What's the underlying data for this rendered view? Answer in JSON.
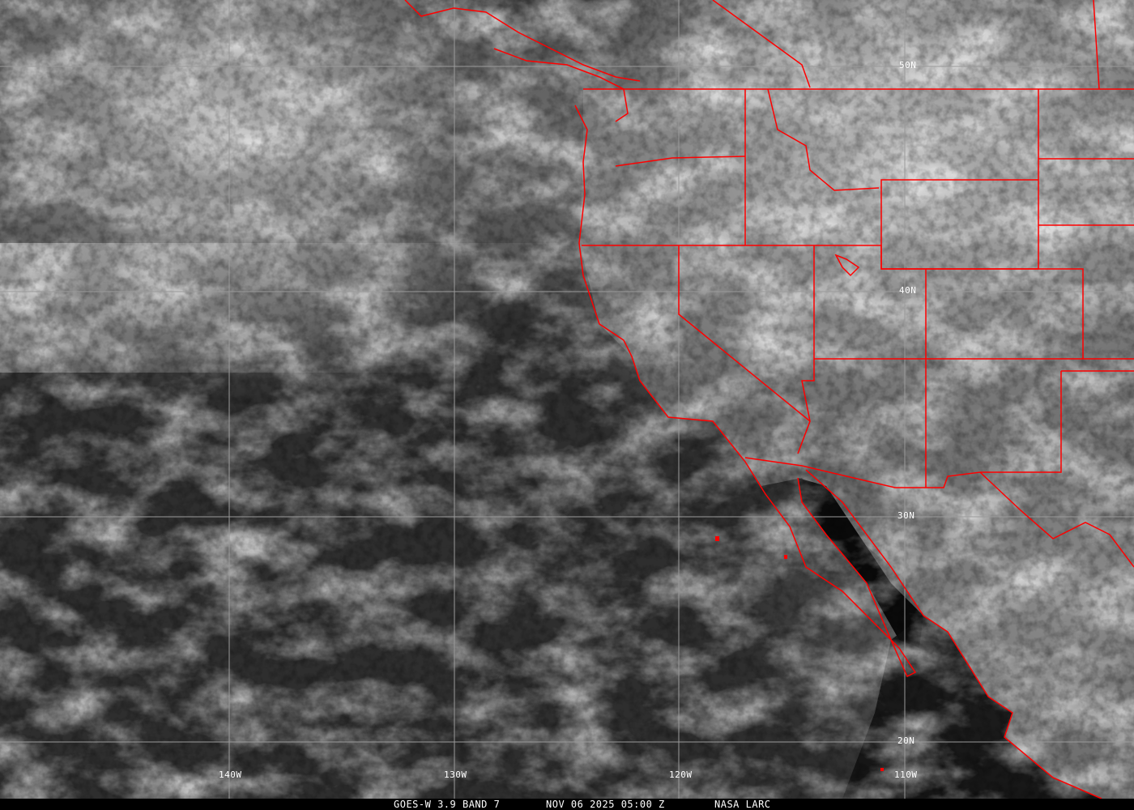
{
  "map": {
    "type": "satellite infrared imagery",
    "colors": {
      "borders": "#ff0000",
      "grid": "#9a9a9a",
      "caption_bg": "#000000",
      "text": "#ffffff"
    },
    "longitude_labels": [
      "140W",
      "130W",
      "120W",
      "110W"
    ],
    "latitude_labels": [
      "50N",
      "40N",
      "30N",
      "20N"
    ]
  },
  "caption": {
    "satellite": "GOES-W 3.9 BAND 7",
    "datetime": "NOV 06 2025 05:00 Z",
    "source": "NASA LARC"
  }
}
